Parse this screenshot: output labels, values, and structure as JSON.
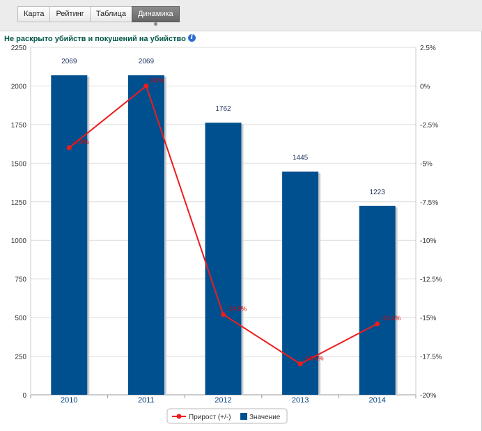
{
  "tabs": [
    {
      "label": "Карта",
      "active": false
    },
    {
      "label": "Рейтинг",
      "active": false
    },
    {
      "label": "Таблица",
      "active": false
    },
    {
      "label": "Динамика",
      "active": true
    }
  ],
  "info_icon": "info-icon",
  "chart_data": {
    "type": "bar",
    "title": "Не раскрыто убийств и покушений на убийство",
    "categories": [
      "2010",
      "2011",
      "2012",
      "2013",
      "2014"
    ],
    "left_axis": {
      "ylim": [
        0,
        2250
      ],
      "ticks": [
        "2250",
        "2000",
        "1750",
        "1500",
        "1250",
        "1000",
        "750",
        "500",
        "250",
        "0"
      ]
    },
    "right_axis": {
      "ylim": [
        -20,
        2.5
      ],
      "ticks": [
        "2.5%",
        "0%",
        "-2.5%",
        "-5%",
        "-7.5%",
        "-10%",
        "-12.5%",
        "-15%",
        "-17.5%",
        "-20%"
      ]
    },
    "series": [
      {
        "name": "Значение",
        "type": "bar",
        "color": "#00508f",
        "axis": "left",
        "values": [
          2069,
          2069,
          1762,
          1445,
          1223
        ],
        "labels": [
          "2069",
          "2069",
          "1762",
          "1445",
          "1223"
        ]
      },
      {
        "name": "Прирост (+/-)",
        "type": "line",
        "color": "#ee1c1c",
        "axis": "right",
        "values": [
          -4.0,
          0.0,
          -14.8,
          -18.0,
          -15.4
        ],
        "labels": [
          "-4.0%",
          "0.0%",
          "-14.8%",
          "-18.0%",
          "-15.4%"
        ]
      }
    ],
    "grid": true,
    "legend": "bottom-center"
  }
}
